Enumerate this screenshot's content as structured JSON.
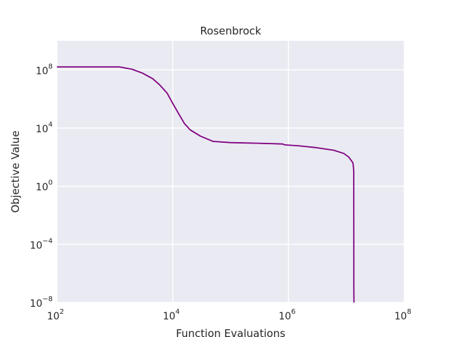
{
  "chart_data": {
    "type": "line",
    "title": "Rosenbrock",
    "xlabel": "Function Evaluations",
    "ylabel": "Objective Value",
    "xscale": "log",
    "yscale": "log",
    "xlim": [
      100,
      100000000
    ],
    "ylim": [
      1e-08,
      10000000000.0
    ],
    "grid": true,
    "background_color": "#eaeaf2",
    "grid_color": "#ffffff",
    "x_ticks": [
      {
        "value": 100,
        "base": "10",
        "exp": "2"
      },
      {
        "value": 10000,
        "base": "10",
        "exp": "4"
      },
      {
        "value": 1000000,
        "base": "10",
        "exp": "6"
      },
      {
        "value": 100000000,
        "base": "10",
        "exp": "8"
      }
    ],
    "y_ticks": [
      {
        "value": 1e-08,
        "base": "10",
        "exp": "−8"
      },
      {
        "value": 0.0001,
        "base": "10",
        "exp": "−4"
      },
      {
        "value": 1,
        "base": "10",
        "exp": "0"
      },
      {
        "value": 10000,
        "base": "10",
        "exp": "4"
      },
      {
        "value": 100000000,
        "base": "10",
        "exp": "8"
      }
    ],
    "series": [
      {
        "color": "#800080",
        "x": [
          100,
          1200,
          2000,
          3000,
          4500,
          6000,
          8000,
          10000,
          13000,
          16000,
          20000,
          30000,
          50000,
          100000,
          300000,
          800000,
          850000,
          1500000,
          3000000,
          6000000,
          9000000,
          11000000,
          13000000,
          13300000,
          13400000,
          13450000,
          13500000
        ],
        "y": [
          160000000,
          160000000,
          110000000,
          60000000,
          25000000,
          9000000,
          2500000,
          500000,
          80000,
          20000,
          7500,
          2800,
          1200,
          1000,
          900,
          800,
          700,
          600,
          450,
          300,
          180,
          100,
          40,
          15,
          10,
          1e-07,
          1e-08
        ]
      }
    ]
  }
}
